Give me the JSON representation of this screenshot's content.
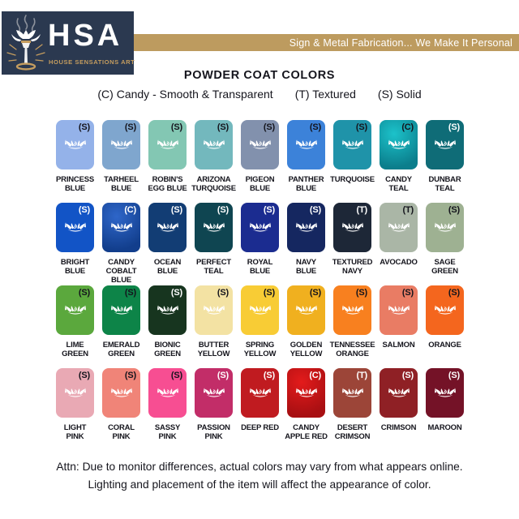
{
  "header": {
    "logo_acronym": "HSA",
    "logo_name": "HOUSE SENSATIONS ART",
    "tagline": "Sign & Metal Fabrication... We Make It Personal",
    "navy": "#2b3950",
    "tan": "#bd9b5f",
    "gold": "#c59d5f"
  },
  "title": "POWDER COAT COLORS",
  "legend": [
    {
      "code": "(C)",
      "label": "Candy - Smooth & Transparent"
    },
    {
      "code": "(T)",
      "label": "Textured"
    },
    {
      "code": "(S)",
      "label": "Solid"
    }
  ],
  "swatches": [
    {
      "name": "Princess Blue",
      "lines": [
        "PRINCESS",
        "BLUE"
      ],
      "code": "(S)",
      "bg": "#94b2e9",
      "code_color": "#14141c"
    },
    {
      "name": "Tarheel Blue",
      "lines": [
        "TARHEEL",
        "BLUE"
      ],
      "code": "(S)",
      "bg": "#7fa6ce",
      "code_color": "#14141c"
    },
    {
      "name": "Robin's Egg Blue",
      "lines": [
        "ROBIN'S",
        "EGG BLUE"
      ],
      "code": "(S)",
      "bg": "#83c7b3",
      "code_color": "#14141c"
    },
    {
      "name": "Arizona Turquoise",
      "lines": [
        "ARIZONA",
        "TURQUOISE"
      ],
      "code": "(S)",
      "bg": "#73b8bd",
      "code_color": "#14141c"
    },
    {
      "name": "Pigeon Blue",
      "lines": [
        "PIGEON",
        "BLUE"
      ],
      "code": "(S)",
      "bg": "#8291ad",
      "code_color": "#14141c"
    },
    {
      "name": "Panther Blue",
      "lines": [
        "PANTHER",
        "BLUE"
      ],
      "code": "(S)",
      "bg": "#3c82d9",
      "code_color": "#14141c"
    },
    {
      "name": "Turquoise",
      "lines": [
        "TURQUOISE"
      ],
      "code": "(S)",
      "bg": "#1f93a9",
      "code_color": "#14141c"
    },
    {
      "name": "Candy Teal",
      "lines": [
        "CANDY",
        "TEAL"
      ],
      "code": "(C)",
      "bg": "#0b7e8c",
      "highlight": "#1cc2ca",
      "code_color": "#14141c"
    },
    {
      "name": "Dunbar Teal",
      "lines": [
        "DUNBAR",
        "TEAL"
      ],
      "code": "(S)",
      "bg": "#0f6c77",
      "code_color": "#ffffff"
    },
    {
      "name": "Bright Blue",
      "lines": [
        "BRIGHT",
        "BLUE"
      ],
      "code": "(S)",
      "bg": "#1254c6",
      "code_color": "#ffffff"
    },
    {
      "name": "Candy Cobalt Blue",
      "lines": [
        "CANDY",
        "COBALT BLUE"
      ],
      "code": "(C)",
      "bg": "#123e8c",
      "highlight": "#2e66c9",
      "code_color": "#ffffff"
    },
    {
      "name": "Ocean Blue",
      "lines": [
        "OCEAN",
        "BLUE"
      ],
      "code": "(S)",
      "bg": "#123d74",
      "code_color": "#ffffff"
    },
    {
      "name": "Perfect Teal",
      "lines": [
        "PERFECT",
        "TEAL"
      ],
      "code": "(S)",
      "bg": "#0f4551",
      "code_color": "#ffffff"
    },
    {
      "name": "Royal Blue",
      "lines": [
        "ROYAL",
        "BLUE"
      ],
      "code": "(S)",
      "bg": "#1b2c90",
      "code_color": "#ffffff"
    },
    {
      "name": "Navy Blue",
      "lines": [
        "NAVY",
        "BLUE"
      ],
      "code": "(S)",
      "bg": "#152760",
      "code_color": "#ffffff"
    },
    {
      "name": "Textured Navy",
      "lines": [
        "TEXTURED",
        "NAVY"
      ],
      "code": "(T)",
      "bg": "#1d2737",
      "code_color": "#ffffff"
    },
    {
      "name": "Avocado",
      "lines": [
        "AVOCADO"
      ],
      "code": "(T)",
      "bg": "#aab6a6",
      "code_color": "#14141c"
    },
    {
      "name": "Sage Green",
      "lines": [
        "SAGE",
        "GREEN"
      ],
      "code": "(S)",
      "bg": "#9eb192",
      "code_color": "#14141c"
    },
    {
      "name": "Lime Green",
      "lines": [
        "LIME",
        "GREEN"
      ],
      "code": "(S)",
      "bg": "#5ba83d",
      "code_color": "#14141c"
    },
    {
      "name": "Emerald Green",
      "lines": [
        "EMERALD",
        "GREEN"
      ],
      "code": "(S)",
      "bg": "#0d8448",
      "code_color": "#14141c"
    },
    {
      "name": "Bionic Green",
      "lines": [
        "BIONIC",
        "GREEN"
      ],
      "code": "(S)",
      "bg": "#17351f",
      "code_color": "#ffffff"
    },
    {
      "name": "Butter Yellow",
      "lines": [
        "BUTTER",
        "YELLOW"
      ],
      "code": "(S)",
      "bg": "#f3e2a3",
      "code_color": "#14141c"
    },
    {
      "name": "Spring Yellow",
      "lines": [
        "SPRING",
        "YELLOW"
      ],
      "code": "(S)",
      "bg": "#f8cc35",
      "code_color": "#14141c"
    },
    {
      "name": "Golden Yellow",
      "lines": [
        "GOLDEN",
        "YELLOW"
      ],
      "code": "(S)",
      "bg": "#f0b01f",
      "code_color": "#14141c"
    },
    {
      "name": "Tennessee Orange",
      "lines": [
        "TENNESSEE",
        "ORANGE"
      ],
      "code": "(S)",
      "bg": "#f8801f",
      "code_color": "#14141c"
    },
    {
      "name": "Salmon",
      "lines": [
        "SALMON"
      ],
      "code": "(S)",
      "bg": "#e97c64",
      "code_color": "#14141c"
    },
    {
      "name": "Orange",
      "lines": [
        "ORANGE"
      ],
      "code": "(S)",
      "bg": "#f4661e",
      "code_color": "#14141c"
    },
    {
      "name": "Light Pink",
      "lines": [
        "LIGHT",
        "PINK"
      ],
      "code": "(S)",
      "bg": "#e9a9b4",
      "code_color": "#14141c"
    },
    {
      "name": "Coral Pink",
      "lines": [
        "CORAL",
        "PINK"
      ],
      "code": "(S)",
      "bg": "#f08478",
      "code_color": "#14141c"
    },
    {
      "name": "Sassy Pink",
      "lines": [
        "SASSY",
        "PINK"
      ],
      "code": "(S)",
      "bg": "#f74e92",
      "code_color": "#14141c"
    },
    {
      "name": "Passion Pink",
      "lines": [
        "PASSION",
        "PINK"
      ],
      "code": "(S)",
      "bg": "#c22d68",
      "code_color": "#ffffff"
    },
    {
      "name": "Deep Red",
      "lines": [
        "DEEP RED"
      ],
      "code": "(S)",
      "bg": "#c01b20",
      "code_color": "#ffffff"
    },
    {
      "name": "Candy Apple Red",
      "lines": [
        "CANDY",
        "APPLE RED"
      ],
      "code": "(C)",
      "bg": "#a80f12",
      "highlight": "#e31b1b",
      "code_color": "#ffffff"
    },
    {
      "name": "Desert Crimson",
      "lines": [
        "DESERT",
        "CRIMSON"
      ],
      "code": "(T)",
      "bg": "#9c4538",
      "code_color": "#ffffff"
    },
    {
      "name": "Crimson",
      "lines": [
        "CRIMSON"
      ],
      "code": "(S)",
      "bg": "#8f2025",
      "code_color": "#ffffff"
    },
    {
      "name": "Maroon",
      "lines": [
        "MAROON"
      ],
      "code": "(S)",
      "bg": "#741227",
      "code_color": "#ffffff"
    }
  ],
  "footer": {
    "line1": "Attn: Due to monitor differences, actual colors may vary from what appears online.",
    "line2": "Lighting and placement of the item will affect the appearance of color."
  }
}
